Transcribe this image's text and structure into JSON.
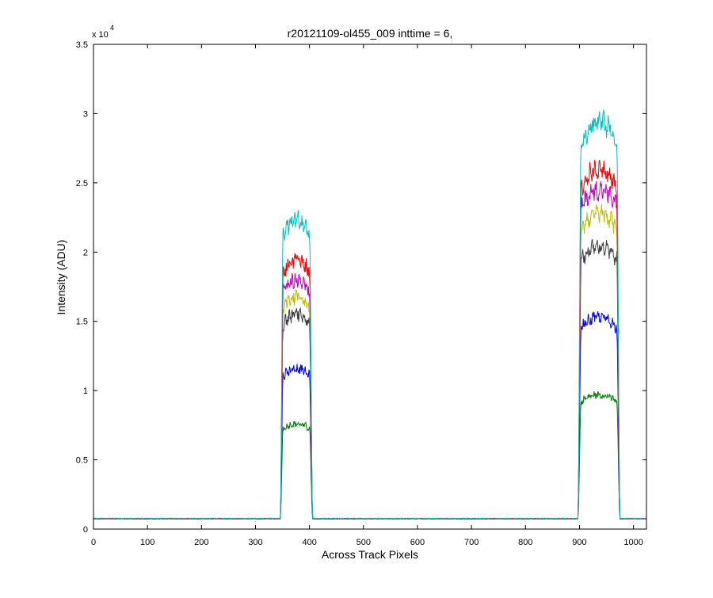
{
  "chart_data": {
    "type": "line",
    "title": "r20121109-ol455_009 inttime = 6,",
    "xlabel": "Across Track Pixels",
    "ylabel": "Intensity (ADU)",
    "y_exponent_label": "x 10",
    "y_exponent": "4",
    "xlim": [
      0,
      1024
    ],
    "ylim": [
      0,
      35000
    ],
    "x_ticks": [
      0,
      100,
      200,
      300,
      400,
      500,
      600,
      700,
      800,
      900,
      1000
    ],
    "y_ticks": [
      0,
      5000,
      10000,
      15000,
      20000,
      25000,
      30000,
      35000
    ],
    "y_tick_labels": [
      "0",
      "0.5",
      "1",
      "1.5",
      "2",
      "2.5",
      "3",
      "3.5"
    ],
    "grid": false,
    "legend": "none",
    "baseline": 750,
    "peak1_range": [
      348,
      403
    ],
    "peak2_range": [
      900,
      972
    ],
    "series": [
      {
        "color": "#008000",
        "peak1": 7600,
        "peak2": 9700
      },
      {
        "color": "#0000ff",
        "peak1": 11600,
        "peak2": 15300
      },
      {
        "color": "#404040",
        "peak1": 15500,
        "peak2": 20400
      },
      {
        "color": "#bfbf00",
        "peak1": 16800,
        "peak2": 22800
      },
      {
        "color": "#bf00bf",
        "peak1": 18000,
        "peak2": 24500
      },
      {
        "color": "#ff0000",
        "peak1": 19400,
        "peak2": 26000
      },
      {
        "color": "#00bfbf",
        "peak1": 22300,
        "peak2": 29400
      }
    ]
  }
}
